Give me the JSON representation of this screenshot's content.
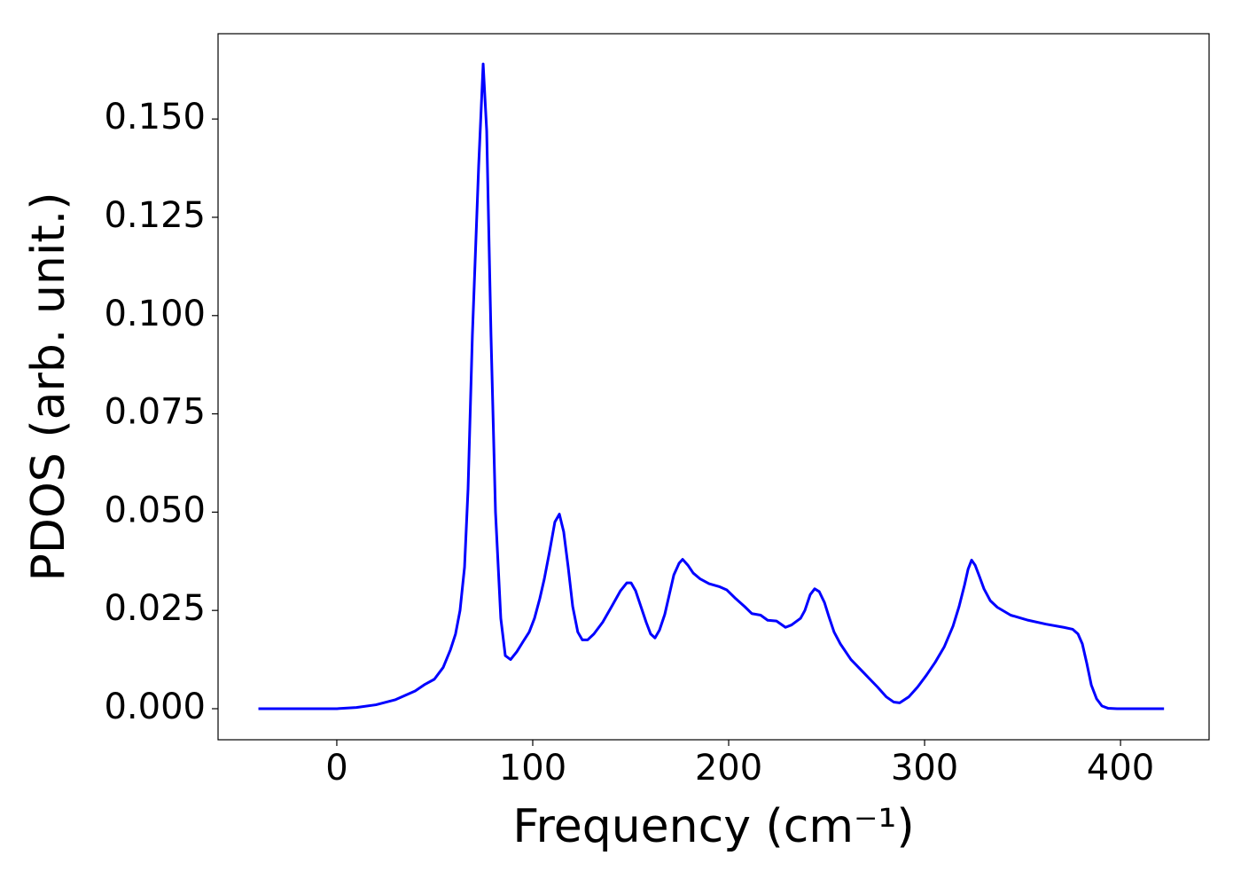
{
  "chart_data": {
    "type": "line",
    "x_label": "Frequency (cm⁻¹)",
    "y_label": "PDOS (arb. unit.)",
    "x": [
      -40,
      0,
      10,
      20,
      30,
      40,
      45,
      49.8,
      54.3,
      58,
      60.6,
      62.9,
      65.2,
      67,
      69.2,
      72.4,
      74.7,
      76.5,
      78.7,
      81,
      83.7,
      86,
      88.7,
      91.9,
      95,
      98.2,
      100.9,
      103.6,
      105.9,
      108.6,
      111.3,
      113.6,
      115.8,
      118.1,
      120.4,
      123,
      125.3,
      128,
      131.2,
      135.7,
      140.3,
      144.8,
      148,
      150.2,
      152.5,
      155.2,
      157.9,
      160.2,
      162.4,
      164.7,
      167.4,
      169.7,
      172,
      174.7,
      176.5,
      179.2,
      181.9,
      185.5,
      190,
      195.5,
      199.1,
      203.6,
      208.1,
      211.8,
      216.3,
      219.9,
      224.4,
      229,
      232.1,
      236.7,
      238.9,
      241.6,
      243.9,
      246.2,
      248.9,
      251.1,
      253.8,
      257,
      262.4,
      269.2,
      276,
      280.5,
      284.2,
      287.3,
      291.9,
      296.4,
      300.9,
      305.4,
      310,
      314.5,
      317.6,
      320.4,
      322.2,
      324,
      325.8,
      328.1,
      330.3,
      333.5,
      337.1,
      343.9,
      352.9,
      362,
      371,
      375.6,
      378.3,
      380.5,
      382.8,
      385.1,
      387.8,
      390.5,
      393.7,
      398.2,
      422.2
    ],
    "series": [
      {
        "color": "#0000ff",
        "values": [
          0,
          0,
          0.0003,
          0.001,
          0.0023,
          0.0045,
          0.0062,
          0.0075,
          0.0105,
          0.015,
          0.019,
          0.025,
          0.036,
          0.056,
          0.095,
          0.138,
          0.164,
          0.147,
          0.095,
          0.05,
          0.023,
          0.0135,
          0.0125,
          0.0145,
          0.017,
          0.0195,
          0.023,
          0.028,
          0.033,
          0.04,
          0.0475,
          0.0495,
          0.045,
          0.036,
          0.026,
          0.0195,
          0.0175,
          0.0175,
          0.019,
          0.022,
          0.026,
          0.03,
          0.032,
          0.032,
          0.03,
          0.026,
          0.022,
          0.019,
          0.018,
          0.02,
          0.024,
          0.029,
          0.034,
          0.037,
          0.038,
          0.0365,
          0.0345,
          0.033,
          0.0318,
          0.031,
          0.0302,
          0.028,
          0.026,
          0.0242,
          0.0238,
          0.0225,
          0.0223,
          0.0207,
          0.0213,
          0.023,
          0.025,
          0.029,
          0.0305,
          0.0298,
          0.027,
          0.0235,
          0.0195,
          0.0165,
          0.0125,
          0.009,
          0.0055,
          0.003,
          0.0017,
          0.0015,
          0.003,
          0.0055,
          0.0085,
          0.0118,
          0.0157,
          0.021,
          0.026,
          0.0315,
          0.0355,
          0.0378,
          0.0365,
          0.0335,
          0.0305,
          0.0275,
          0.0258,
          0.0238,
          0.0225,
          0.0215,
          0.0207,
          0.0202,
          0.019,
          0.0165,
          0.0115,
          0.006,
          0.0025,
          0.0007,
          0.0001,
          0,
          0
        ]
      }
    ],
    "xlim": [
      -60.6,
      445.2
    ],
    "ylim": [
      -0.0079,
      0.1717
    ],
    "xticks": [
      0,
      100,
      200,
      300,
      400
    ],
    "yticks": [
      {
        "value": 0,
        "label": "0.000"
      },
      {
        "value": 0.025,
        "label": "0.025"
      },
      {
        "value": 0.05,
        "label": "0.050"
      },
      {
        "value": 0.075,
        "label": "0.075"
      },
      {
        "value": 0.1,
        "label": "0.100"
      },
      {
        "value": 0.125,
        "label": "0.125"
      },
      {
        "value": 0.15,
        "label": "0.150"
      }
    ],
    "grid": false
  }
}
